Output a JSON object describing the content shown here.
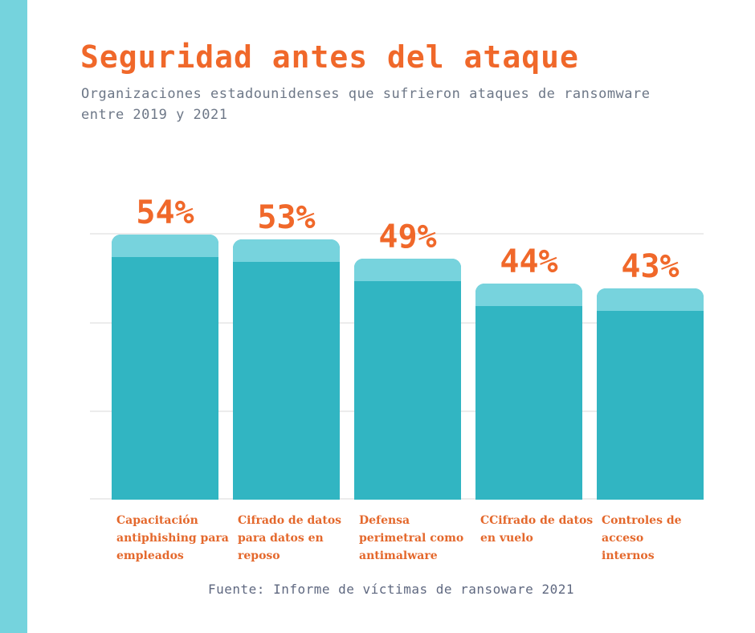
{
  "header": {
    "title": "Seguridad antes del ataque",
    "subtitle_line1": "Organizaciones estadounidenses que sufrieron ataques de ransomware",
    "subtitle_line2": "entre 2019 y 2021"
  },
  "chart_data": {
    "type": "bar",
    "title": "Seguridad antes del ataque",
    "subtitle": "Organizaciones estadounidenses que sufrieron ataques de ransomware entre 2019 y 2021",
    "categories": [
      "Capacitación antiphishing para empleados",
      "Cifrado de datos para datos en reposo",
      "Defensa perimetral como antimalware",
      "CCifrado de datos en vuelo",
      "Controles de acceso internos"
    ],
    "category_lines": [
      [
        "Capacitación",
        "antiphishing para",
        "empleados"
      ],
      [
        "Cifrado de datos",
        "para datos en",
        "reposo"
      ],
      [
        "Defensa",
        "perimetral como",
        "antimalware"
      ],
      [
        "CCifrado de datos",
        "en vuelo"
      ],
      [
        "Controles de acceso",
        "internos"
      ]
    ],
    "values": [
      54,
      53,
      49,
      44,
      43
    ],
    "value_labels": [
      "54%",
      "53%",
      "49%",
      "44%",
      "43%"
    ],
    "unit": "%",
    "ylim": [
      0,
      55
    ],
    "grid": true,
    "gridline_positions_pct": [
      0,
      33.3,
      66.6,
      99.4
    ],
    "legend": "none",
    "xlabel": "",
    "ylabel": ""
  },
  "footer": {
    "source": "Fuente: Informe de víctimas de ransoware 2021"
  },
  "colors": {
    "background": "#ffffff",
    "accent_stripe": "#75d3dd",
    "bar_body": "#31b5c2",
    "bar_cap": "#77d3dd",
    "title_orange": "#f0682a",
    "value_orange": "#f0682a",
    "category_orange": "#e4682c",
    "subtitle_gray": "#6d7787",
    "footer_gray": "#5f6880",
    "gridline": "#ececec"
  }
}
